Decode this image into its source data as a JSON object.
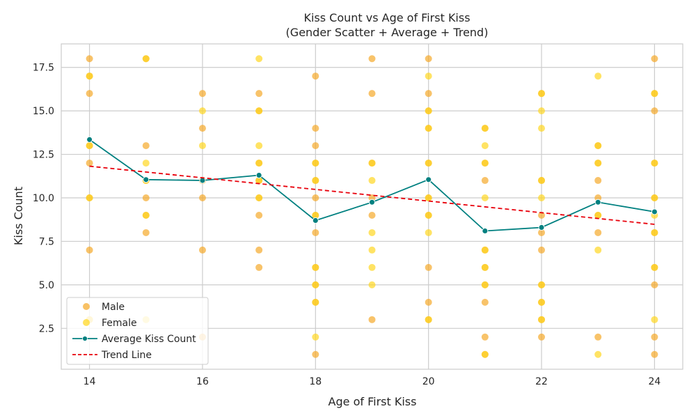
{
  "chart_data": {
    "type": "scatter",
    "title_lines": [
      "Kiss Count vs Age of First Kiss",
      "(Gender Scatter + Average + Trend)"
    ],
    "xlabel": "Age of First Kiss",
    "ylabel": "Kiss Count",
    "xlim": [
      13.5,
      24.5
    ],
    "ylim": [
      0.15,
      18.85
    ],
    "xticks": [
      14,
      16,
      18,
      20,
      22,
      24
    ],
    "yticks": [
      2.5,
      5.0,
      7.5,
      10.0,
      12.5,
      15.0,
      17.5
    ],
    "ytick_labels": [
      "2.5",
      "5.0",
      "7.5",
      "10.0",
      "12.5",
      "15.0",
      "17.5"
    ],
    "grid": true,
    "legend_position": "bottom-left",
    "series": [
      {
        "name": "Male",
        "kind": "scatter",
        "color": "#f5a623",
        "points": [
          [
            14,
            18
          ],
          [
            14,
            17
          ],
          [
            14,
            16
          ],
          [
            14,
            13
          ],
          [
            14,
            12
          ],
          [
            14,
            10
          ],
          [
            14,
            7
          ],
          [
            14,
            3
          ],
          [
            15,
            18
          ],
          [
            15,
            13
          ],
          [
            15,
            11
          ],
          [
            15,
            10
          ],
          [
            15,
            9
          ],
          [
            15,
            8
          ],
          [
            16,
            16
          ],
          [
            16,
            14
          ],
          [
            16,
            11
          ],
          [
            16,
            10
          ],
          [
            16,
            7
          ],
          [
            16,
            2
          ],
          [
            17,
            16
          ],
          [
            17,
            15
          ],
          [
            17,
            12
          ],
          [
            17,
            11
          ],
          [
            17,
            10
          ],
          [
            17,
            9
          ],
          [
            17,
            7
          ],
          [
            17,
            6
          ],
          [
            18,
            17
          ],
          [
            18,
            14
          ],
          [
            18,
            13
          ],
          [
            18,
            12
          ],
          [
            18,
            11
          ],
          [
            18,
            10
          ],
          [
            18,
            9
          ],
          [
            18,
            8
          ],
          [
            18,
            6
          ],
          [
            18,
            5
          ],
          [
            18,
            4
          ],
          [
            18,
            1
          ],
          [
            19,
            18
          ],
          [
            19,
            16
          ],
          [
            19,
            12
          ],
          [
            19,
            10
          ],
          [
            19,
            9
          ],
          [
            19,
            3
          ],
          [
            20,
            18
          ],
          [
            20,
            16
          ],
          [
            20,
            15
          ],
          [
            20,
            14
          ],
          [
            20,
            12
          ],
          [
            20,
            10
          ],
          [
            20,
            9
          ],
          [
            20,
            6
          ],
          [
            20,
            4
          ],
          [
            20,
            3
          ],
          [
            21,
            14
          ],
          [
            21,
            12
          ],
          [
            21,
            11
          ],
          [
            21,
            7
          ],
          [
            21,
            6
          ],
          [
            21,
            5
          ],
          [
            21,
            4
          ],
          [
            21,
            2
          ],
          [
            21,
            1
          ],
          [
            22,
            16
          ],
          [
            22,
            11
          ],
          [
            22,
            9
          ],
          [
            22,
            8
          ],
          [
            22,
            7
          ],
          [
            22,
            5
          ],
          [
            22,
            4
          ],
          [
            22,
            3
          ],
          [
            22,
            2
          ],
          [
            23,
            13
          ],
          [
            23,
            12
          ],
          [
            23,
            11
          ],
          [
            23,
            10
          ],
          [
            23,
            9
          ],
          [
            23,
            8
          ],
          [
            23,
            2
          ],
          [
            24,
            18
          ],
          [
            24,
            16
          ],
          [
            24,
            15
          ],
          [
            24,
            12
          ],
          [
            24,
            10
          ],
          [
            24,
            8
          ],
          [
            24,
            6
          ],
          [
            24,
            5
          ],
          [
            24,
            2
          ],
          [
            24,
            1
          ]
        ]
      },
      {
        "name": "Female",
        "kind": "scatter",
        "color": "#ffd51a",
        "points": [
          [
            14,
            17
          ],
          [
            14,
            13
          ],
          [
            14,
            10
          ],
          [
            14,
            3
          ],
          [
            15,
            18
          ],
          [
            15,
            12
          ],
          [
            15,
            11
          ],
          [
            15,
            9
          ],
          [
            15,
            3
          ],
          [
            16,
            15
          ],
          [
            16,
            13
          ],
          [
            17,
            18
          ],
          [
            17,
            15
          ],
          [
            17,
            13
          ],
          [
            17,
            12
          ],
          [
            17,
            11
          ],
          [
            17,
            10
          ],
          [
            18,
            12
          ],
          [
            18,
            11
          ],
          [
            18,
            9
          ],
          [
            18,
            6
          ],
          [
            18,
            5
          ],
          [
            18,
            4
          ],
          [
            18,
            2
          ],
          [
            19,
            12
          ],
          [
            19,
            11
          ],
          [
            19,
            8
          ],
          [
            19,
            7
          ],
          [
            19,
            6
          ],
          [
            19,
            5
          ],
          [
            20,
            17
          ],
          [
            20,
            15
          ],
          [
            20,
            14
          ],
          [
            20,
            12
          ],
          [
            20,
            10
          ],
          [
            20,
            9
          ],
          [
            20,
            8
          ],
          [
            20,
            3
          ],
          [
            21,
            14
          ],
          [
            21,
            13
          ],
          [
            21,
            12
          ],
          [
            21,
            10
          ],
          [
            21,
            7
          ],
          [
            21,
            6
          ],
          [
            21,
            5
          ],
          [
            21,
            1
          ],
          [
            22,
            16
          ],
          [
            22,
            15
          ],
          [
            22,
            14
          ],
          [
            22,
            11
          ],
          [
            22,
            10
          ],
          [
            22,
            5
          ],
          [
            22,
            4
          ],
          [
            22,
            3
          ],
          [
            23,
            17
          ],
          [
            23,
            13
          ],
          [
            23,
            12
          ],
          [
            23,
            9
          ],
          [
            23,
            7
          ],
          [
            23,
            1
          ],
          [
            24,
            16
          ],
          [
            24,
            12
          ],
          [
            24,
            10
          ],
          [
            24,
            9
          ],
          [
            24,
            8
          ],
          [
            24,
            6
          ],
          [
            24,
            3
          ]
        ]
      },
      {
        "name": "Average Kiss Count",
        "kind": "line-markers",
        "color": "#008080",
        "x": [
          14,
          15,
          16,
          17,
          18,
          19,
          20,
          21,
          22,
          23,
          24
        ],
        "values": [
          13.35,
          11.05,
          11.0,
          11.3,
          8.7,
          9.75,
          11.05,
          8.1,
          8.3,
          9.75,
          9.2
        ]
      },
      {
        "name": "Trend Line",
        "kind": "dashed-line",
        "color": "#e8000b",
        "x": [
          14,
          24
        ],
        "values": [
          11.82,
          8.48
        ]
      }
    ]
  }
}
